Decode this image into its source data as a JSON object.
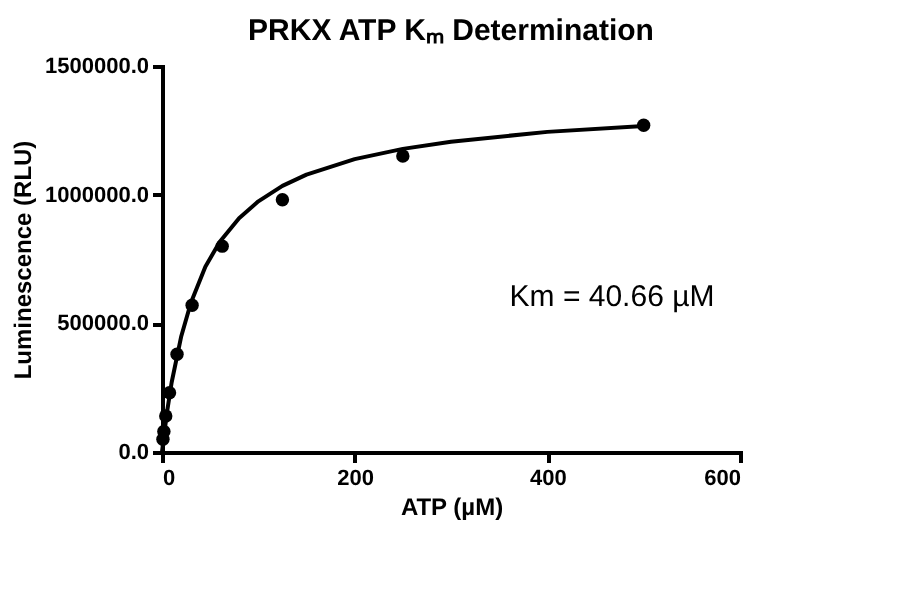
{
  "chart_data": {
    "type": "scatter",
    "title": "PRKX ATP Kₘ Determination",
    "xlabel": "ATP (µM)",
    "ylabel": "Luminescence (RLU)",
    "xlim": [
      0,
      600
    ],
    "xticks": [
      0,
      200,
      400,
      600
    ],
    "ylim": [
      0,
      1500000
    ],
    "yticks": [
      {
        "value": 0,
        "label": "0.0"
      },
      {
        "value": 500000,
        "label": "500000.0"
      },
      {
        "value": 1000000,
        "label": "1000000.0"
      },
      {
        "value": 1500000,
        "label": "1500000.0"
      }
    ],
    "grid": false,
    "annotations": [
      "Km = 40.66 µM"
    ],
    "series": [
      {
        "marker": "circle",
        "color": "#000000",
        "x": [
          0.98,
          1.95,
          3.9,
          7.8,
          15.6,
          31.25,
          62.5,
          125,
          250,
          500
        ],
        "values": [
          50000,
          80000,
          140000,
          230000,
          380000,
          570000,
          800000,
          980000,
          1150000,
          1270000
        ]
      },
      {
        "type": "line",
        "marker": "none",
        "line_style": "solid",
        "color": "#000000",
        "x": [
          0,
          5,
          10,
          20,
          30,
          45,
          60,
          80,
          100,
          125,
          150,
          200,
          250,
          300,
          400,
          500
        ],
        "values": [
          0,
          150000,
          270000,
          450000,
          580000,
          720000,
          817000,
          908000,
          974000,
          1034000,
          1078000,
          1138000,
          1178000,
          1206000,
          1244000,
          1267000
        ]
      }
    ]
  }
}
